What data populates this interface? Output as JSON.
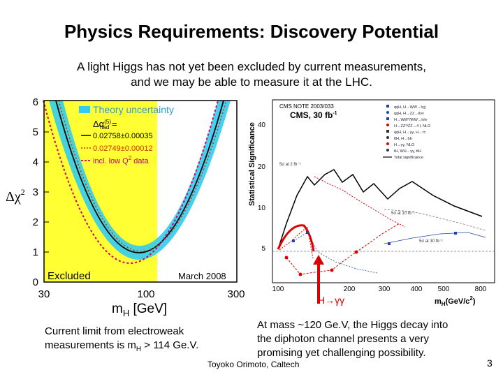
{
  "slide": {
    "title": "Physics Requirements: Discovery Potential",
    "subtitle_line1": "A light Higgs has not yet been excluded by current measurements,",
    "subtitle_line2": "and we may be able to measure it at the LHC.",
    "left_note_line1": "Current limit from electroweak",
    "left_note_line2_prefix": "measurements is m",
    "left_note_sub": "H",
    "left_note_line2_suffix": " > 114 Ge.V.",
    "right_note_line1": "At mass ~120 Ge.V, the Higgs decay into",
    "right_note_line2": "the diphoton channel presents a very",
    "right_note_line3": "promising yet challenging possibility.",
    "footer": "Toyoko Orimoto, Caltech",
    "page_number": "3"
  },
  "blueband": {
    "yticks": [
      "0",
      "1",
      "2",
      "3",
      "4",
      "5",
      "6"
    ],
    "xticks": [
      "30",
      "100",
      "300"
    ],
    "xlabel_main": "m",
    "xlabel_sub": "H",
    "xlabel_unit": "[GeV]",
    "ylabel": "Δχ",
    "ylabel_sup": "2",
    "excluded_label": "Excluded",
    "date_label": "March 2008",
    "legend_theory": "Theory uncertainty",
    "legend_alpha": "Δα",
    "legend_alpha_sup": "(5)",
    "legend_alpha_sub": "had",
    "legend_alpha_eq": " =",
    "legend_val1": "0.02758±0.00035",
    "legend_val2": "0.02749±0.00012",
    "legend_lowq": "incl. low Q",
    "legend_lowq_sup": "2",
    "legend_lowq_end": " data",
    "colors": {
      "excluded": "#ffff33",
      "band": "#33ccee",
      "solid": "#000000",
      "dotted": "#cc3300",
      "lowq": "#cc0066"
    }
  },
  "cms": {
    "note": "CMS NOTE 2003/033",
    "title": "CMS, 30 fb",
    "title_sup": "-1",
    "ylabel": "Statistical Significance",
    "yticks": [
      "5",
      "10",
      "20",
      "40"
    ],
    "xticks": [
      "100",
      "200",
      "300",
      "400",
      "500",
      "800"
    ],
    "xlabel_main": "m",
    "xlabel_sub": "H",
    "xlabel_unit": "(GeV/c",
    "xlabel_sup": "2",
    "xlabel_end": ")",
    "lumi_labels": [
      "5σ at 2 fb⁻¹",
      "5σ at 10 fb⁻¹",
      "5σ at 30 fb⁻¹"
    ],
    "legend": [
      "qqH, H→WW→lνjj",
      "qqH, H→ZZ→llνν",
      "H→WW*/WW→lνlν",
      "H→ZZ*/ZZ→4 l, NLO",
      "qqH, H→γγ, H→ττ",
      "ttH, H→bb",
      "H→γγ, NLO",
      "tH, WH→γγ, ttH"
    ],
    "legend_total": "Total significance",
    "arrow_label": "H→γγ",
    "colors": {
      "hgg": "#dd0000",
      "total": "#000000",
      "arrow": "#dd0000"
    }
  }
}
